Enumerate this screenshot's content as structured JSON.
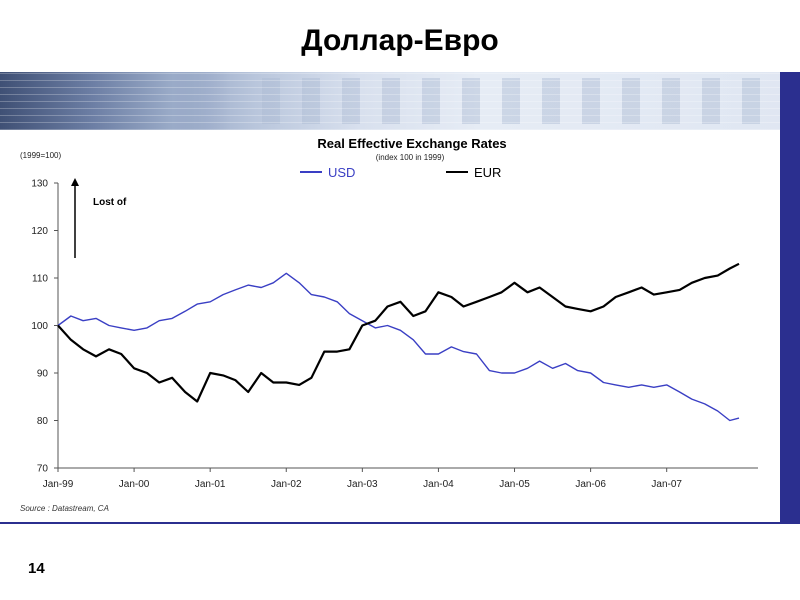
{
  "slide": {
    "title": "Доллар-Евро",
    "page_number": "14"
  },
  "colors": {
    "usd": "#3a3fc4",
    "eur": "#000000",
    "banner_blue": "#2b2f8f"
  },
  "chart_data": {
    "type": "line",
    "title": "Real Effective Exchange Rates",
    "subtitle": "(index 100 in 1999)",
    "base_note": "(1999=100)",
    "source": "Source : Datastream, CA",
    "annotation": "Lost of",
    "ylim": [
      70,
      130
    ],
    "yticks": [
      "130",
      "120",
      "110",
      "100",
      "90",
      "80",
      "70"
    ],
    "xlim": [
      0,
      9.2
    ],
    "xtick_labels": [
      "Jan-99",
      "Jan-00",
      "Jan-01",
      "Jan-02",
      "Jan-03",
      "Jan-04",
      "Jan-05",
      "Jan-06",
      "Jan-07"
    ],
    "legend_position": "top",
    "grid": false,
    "series": [
      {
        "name": "USD",
        "x": [
          0,
          0.17,
          0.33,
          0.5,
          0.67,
          0.83,
          1.0,
          1.17,
          1.33,
          1.5,
          1.67,
          1.83,
          2.0,
          2.17,
          2.33,
          2.5,
          2.67,
          2.83,
          3.0,
          3.17,
          3.33,
          3.5,
          3.67,
          3.83,
          4.0,
          4.17,
          4.33,
          4.5,
          4.67,
          4.83,
          5.0,
          5.17,
          5.33,
          5.5,
          5.67,
          5.83,
          6.0,
          6.17,
          6.33,
          6.5,
          6.67,
          6.83,
          7.0,
          7.17,
          7.33,
          7.5,
          7.67,
          7.83,
          8.0,
          8.17,
          8.33,
          8.5,
          8.67,
          8.83,
          8.95
        ],
        "values": [
          100,
          102,
          101,
          101.5,
          100,
          99.5,
          99,
          99.5,
          101,
          101.5,
          103,
          104.5,
          105,
          106.5,
          107.5,
          108.5,
          108,
          109,
          111,
          109,
          106.5,
          106,
          105,
          102.5,
          101,
          99.5,
          100,
          99,
          97,
          94,
          94,
          95.5,
          94.5,
          94,
          90.5,
          90,
          90,
          91,
          92.5,
          91,
          92,
          90.5,
          90,
          88,
          87.5,
          87,
          87.5,
          87,
          87.5,
          86,
          84.5,
          83.5,
          82,
          80,
          80.5
        ]
      },
      {
        "name": "EUR",
        "x": [
          0,
          0.17,
          0.33,
          0.5,
          0.67,
          0.83,
          1.0,
          1.17,
          1.33,
          1.5,
          1.67,
          1.83,
          2.0,
          2.17,
          2.33,
          2.5,
          2.67,
          2.83,
          3.0,
          3.17,
          3.33,
          3.5,
          3.67,
          3.83,
          4.0,
          4.17,
          4.33,
          4.5,
          4.67,
          4.83,
          5.0,
          5.17,
          5.33,
          5.5,
          5.67,
          5.83,
          6.0,
          6.17,
          6.33,
          6.5,
          6.67,
          6.83,
          7.0,
          7.17,
          7.33,
          7.5,
          7.67,
          7.83,
          8.0,
          8.17,
          8.33,
          8.5,
          8.67,
          8.83,
          8.95
        ],
        "values": [
          100,
          97,
          95,
          93.5,
          95,
          94,
          91,
          90,
          88,
          89,
          86,
          84,
          90,
          89.5,
          88.5,
          86,
          90,
          88,
          88,
          87.5,
          89,
          94.5,
          94.5,
          95,
          100,
          101,
          104,
          105,
          102,
          103,
          107,
          106,
          104,
          105,
          106,
          107,
          109,
          107,
          108,
          106,
          104,
          103.5,
          103,
          104,
          106,
          107,
          108,
          106.5,
          107,
          107.5,
          109,
          110,
          110.5,
          112,
          113
        ]
      }
    ]
  }
}
